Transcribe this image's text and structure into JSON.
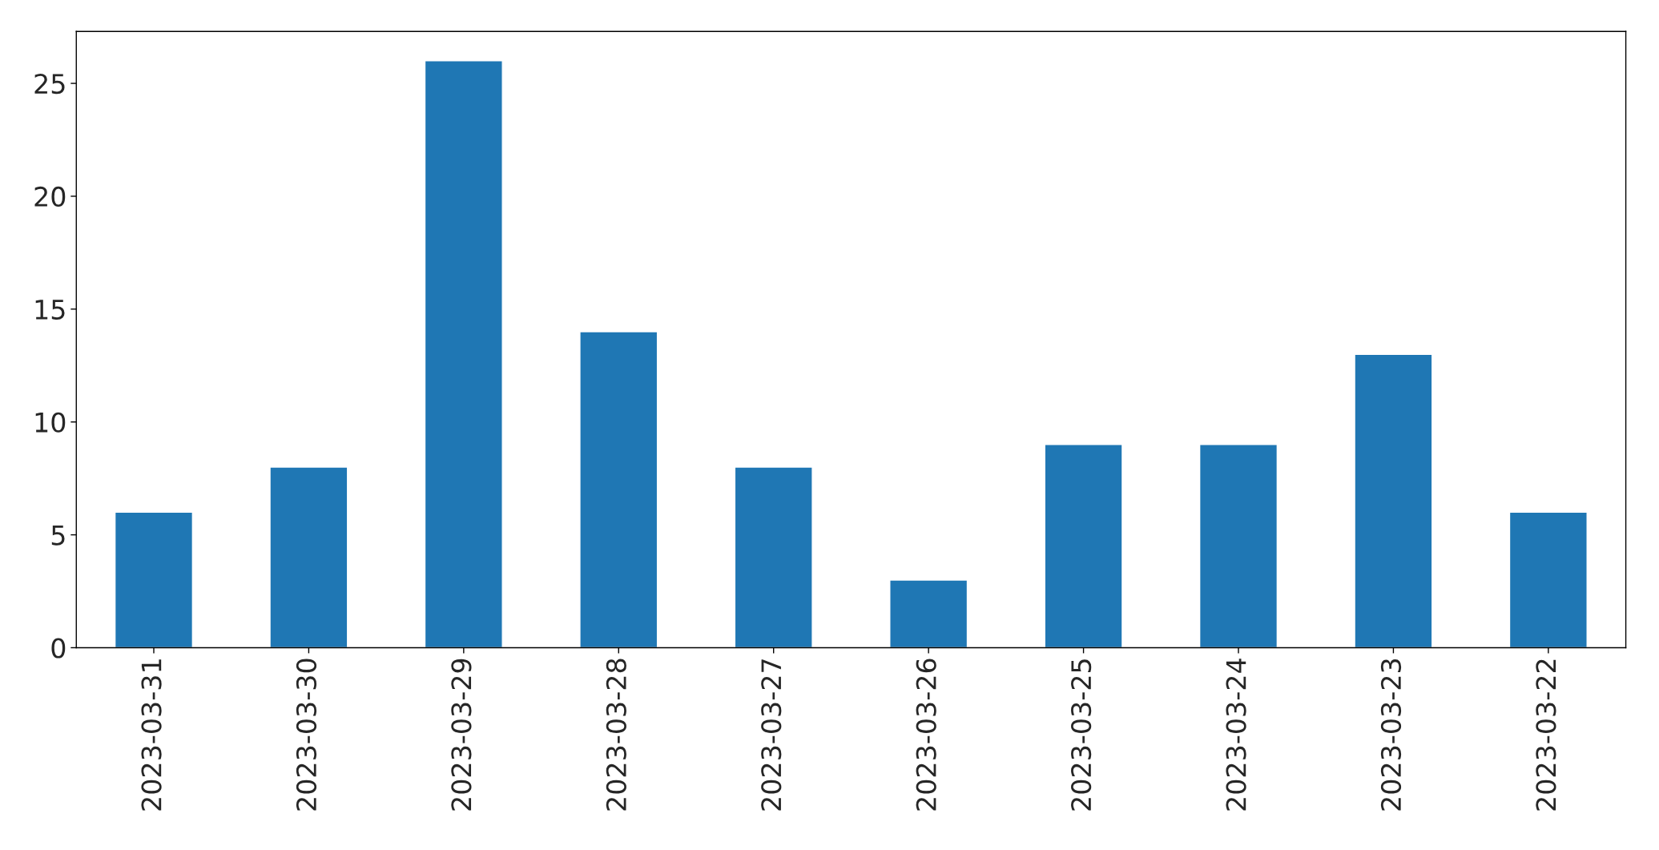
{
  "chart_data": {
    "type": "bar",
    "categories": [
      "2023-03-31",
      "2023-03-30",
      "2023-03-29",
      "2023-03-28",
      "2023-03-27",
      "2023-03-26",
      "2023-03-25",
      "2023-03-24",
      "2023-03-23",
      "2023-03-22"
    ],
    "values": [
      6,
      8,
      26,
      14,
      8,
      3,
      9,
      9,
      13,
      6
    ],
    "color": "#1f77b4",
    "ylim": [
      0,
      27.3
    ],
    "yticks": [
      0,
      5,
      10,
      15,
      20,
      25
    ],
    "grid": false
  }
}
